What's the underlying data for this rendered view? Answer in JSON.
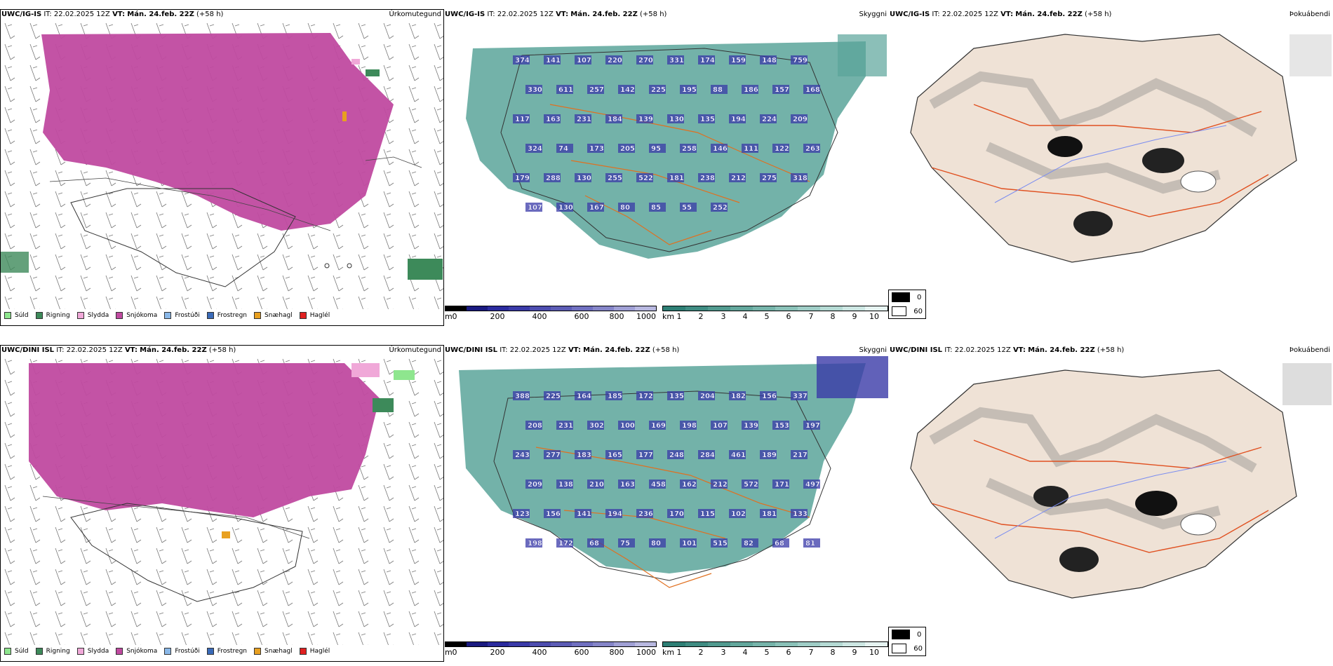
{
  "header_common": {
    "it_prefix": "IT: 22.02.2025 12Z",
    "vt_prefix": "VT:",
    "vt_value": "Mán. 24.feb. 22Z",
    "lead": "(+58 h)"
  },
  "rows": [
    {
      "model": "UWC/IG-IS",
      "panels": [
        {
          "title": "Úrkomutegund"
        },
        {
          "title": "Skyggni"
        },
        {
          "title": "Þokuábendi"
        }
      ],
      "labels": [
        "374",
        "141",
        "107",
        "220",
        "270",
        "331",
        "174",
        "159",
        "148",
        "759",
        "330",
        "611",
        "257",
        "142",
        "225",
        "195",
        "88",
        "186",
        "157",
        "168",
        "117",
        "163",
        "231",
        "184",
        "139",
        "130",
        "135",
        "194",
        "224",
        "209",
        "324",
        "74",
        "173",
        "205",
        "95",
        "258",
        "146",
        "111",
        "122",
        "263",
        "179",
        "288",
        "130",
        "255",
        "522",
        "181",
        "238",
        "212",
        "275",
        "318",
        "107",
        "130",
        "167",
        "80",
        "85",
        "55",
        "252"
      ]
    },
    {
      "model": "UWC/DINI ISL",
      "panels": [
        {
          "title": "Úrkomutegund"
        },
        {
          "title": "Skyggni"
        },
        {
          "title": "Þokuábendi"
        }
      ],
      "labels": [
        "388",
        "225",
        "164",
        "185",
        "172",
        "135",
        "204",
        "182",
        "156",
        "337",
        "208",
        "231",
        "302",
        "100",
        "169",
        "198",
        "107",
        "139",
        "153",
        "197",
        "243",
        "277",
        "183",
        "165",
        "177",
        "248",
        "284",
        "461",
        "189",
        "217",
        "209",
        "138",
        "210",
        "163",
        "458",
        "162",
        "212",
        "572",
        "171",
        "497",
        "123",
        "156",
        "141",
        "194",
        "236",
        "170",
        "115",
        "102",
        "181",
        "133",
        "198",
        "172",
        "68",
        "75",
        "80",
        "101",
        "515",
        "82",
        "68",
        "81"
      ]
    }
  ],
  "precip_legend": [
    {
      "label": "Súld",
      "color": "#8ee68e"
    },
    {
      "label": "Rigning",
      "color": "#3d8a5a"
    },
    {
      "label": "Slydda",
      "color": "#f0a8d8"
    },
    {
      "label": "Snjókoma",
      "color": "#c04aa0"
    },
    {
      "label": "Frostúði",
      "color": "#8ab8e8"
    },
    {
      "label": "Frostregn",
      "color": "#3a6ab8"
    },
    {
      "label": "Snæhagl",
      "color": "#e8a020"
    },
    {
      "label": "Haglél",
      "color": "#e02020"
    }
  ],
  "cbar_m": {
    "unit": "m",
    "ticks": [
      "0",
      "200",
      "400",
      "600",
      "800",
      "1000"
    ],
    "colors": [
      "#000000",
      "#1a1a80",
      "#2b2b9e",
      "#3a3aa8",
      "#4d4daf",
      "#5c5cb5",
      "#7070c0",
      "#8585c8",
      "#a0a0d5",
      "#b8b8e0"
    ]
  },
  "cbar_km": {
    "unit": "km",
    "ticks": [
      "1",
      "2",
      "3",
      "4",
      "5",
      "6",
      "7",
      "8",
      "9",
      "10"
    ],
    "colors": [
      "#2e7f75",
      "#3f8c82",
      "#519a8f",
      "#63a79c",
      "#76b4aa",
      "#8ac1b8",
      "#9fcdc6",
      "#b5dad4",
      "#cde7e3",
      "#e6f3f1"
    ]
  },
  "fog_legend": [
    {
      "label": "0",
      "color": "#000000"
    },
    {
      "label": "60",
      "color": "#ffffff"
    }
  ]
}
